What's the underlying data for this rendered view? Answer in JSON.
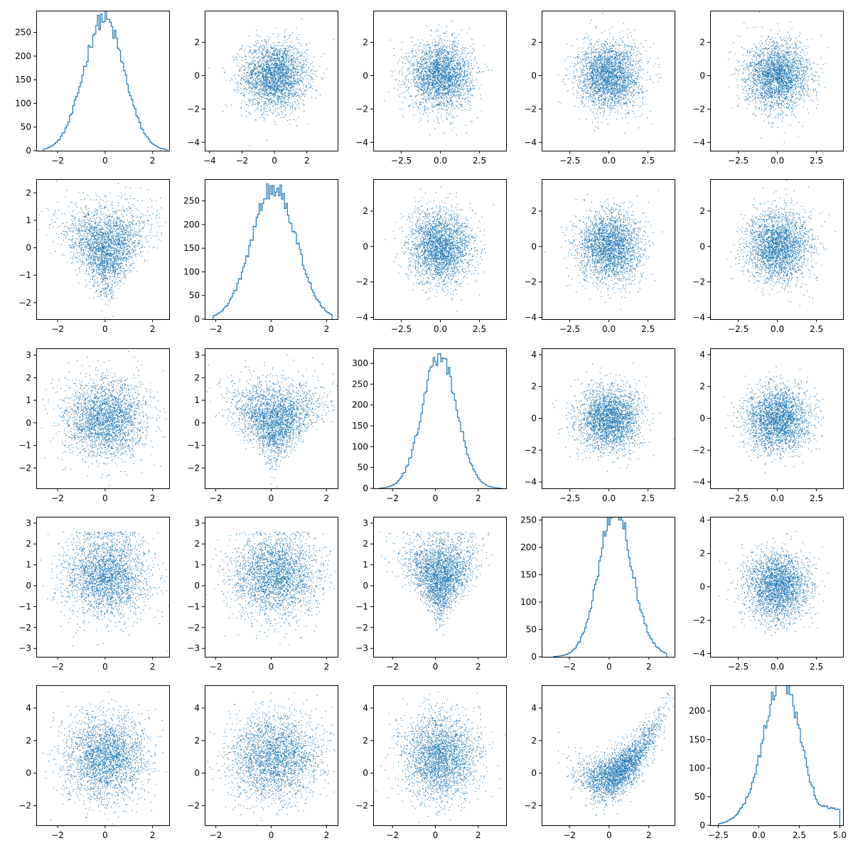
{
  "figure": {
    "type": "pair-plot",
    "rows": 5,
    "cols": 5
  },
  "chart_data": {
    "type": "scatter",
    "layout": "pair-grid",
    "color": "#1f77b4",
    "diagonal": "histogram (step)",
    "off_diagonal": "scatter (dense point cloud)",
    "variables": [
      {
        "index": 0,
        "xlim": [
          -2.9,
          2.7
        ],
        "xticks": [
          -2,
          0,
          2
        ],
        "xtick_labels": [
          "−2",
          "0",
          "2"
        ]
      },
      {
        "index": 1,
        "xlim": [
          -2.4,
          2.4
        ],
        "xticks": [
          -2,
          0,
          2
        ],
        "xtick_labels": [
          "−2",
          "0",
          "2"
        ]
      },
      {
        "index": 2,
        "xlim": [
          -2.9,
          3.3
        ],
        "xticks": [
          -2,
          0,
          2
        ],
        "xtick_labels": [
          "−2",
          "0",
          "2"
        ]
      },
      {
        "index": 3,
        "xlim": [
          -3.4,
          3.3
        ],
        "xticks": [
          -2,
          0,
          2
        ],
        "xtick_labels": [
          "−2",
          "0",
          "2"
        ]
      },
      {
        "index": 4,
        "xlim": [
          -3.0,
          5.2
        ],
        "xticks": [
          -2.5,
          0.0,
          2.5,
          5.0
        ],
        "xtick_labels": [
          "−2.5",
          "0.0",
          "2.5",
          "5.0"
        ]
      }
    ],
    "panels": [
      {
        "row": 0,
        "col": 0,
        "kind": "hist",
        "xlim": [
          -2.9,
          2.7
        ],
        "ylim": [
          0,
          296
        ],
        "xticks": [
          -2,
          0,
          2
        ],
        "xtick_labels": [
          "−2",
          "0",
          "2"
        ],
        "yticks": [
          0,
          50,
          100,
          150,
          200,
          250
        ],
        "ytick_labels": [
          "0",
          "50",
          "100",
          "150",
          "200",
          "250"
        ],
        "hist": {
          "mean": -0.05,
          "sd": 0.85,
          "peak": 280,
          "bins": 80,
          "xmin": -2.6,
          "xmax": 2.6,
          "skew": 0
        }
      },
      {
        "row": 0,
        "col": 1,
        "kind": "scatter",
        "xlim": [
          -4.3,
          3.9
        ],
        "ylim": [
          -4.5,
          3.9
        ],
        "xticks": [
          -4,
          -2,
          0,
          2
        ],
        "xtick_labels": [
          "−4",
          "−2",
          "0",
          "2"
        ],
        "yticks": [
          -4,
          -2,
          0,
          2
        ],
        "ytick_labels": [
          "−4",
          "−2",
          "0",
          "2"
        ],
        "cloud": {
          "n": 2600,
          "mx": 0.0,
          "sx": 1.0,
          "my": 0.0,
          "sy": 1.0
        }
      },
      {
        "row": 0,
        "col": 2,
        "kind": "scatter",
        "xlim": [
          -4.3,
          4.2
        ],
        "ylim": [
          -4.5,
          3.9
        ],
        "xticks": [
          -2.5,
          0.0,
          2.5
        ],
        "xtick_labels": [
          "−2.5",
          "0.0",
          "2.5"
        ],
        "yticks": [
          -4,
          -2,
          0,
          2
        ],
        "ytick_labels": [
          "−4",
          "−2",
          "0",
          "2"
        ],
        "cloud": {
          "n": 2600,
          "mx": 0.0,
          "sx": 1.0,
          "my": 0.0,
          "sy": 1.0
        }
      },
      {
        "row": 0,
        "col": 3,
        "kind": "scatter",
        "xlim": [
          -4.3,
          4.2
        ],
        "ylim": [
          -4.5,
          3.9
        ],
        "xticks": [
          -2.5,
          0.0,
          2.5
        ],
        "xtick_labels": [
          "−2.5",
          "0.0",
          "2.5"
        ],
        "yticks": [
          -4,
          -2,
          0,
          2
        ],
        "ytick_labels": [
          "−4",
          "−2",
          "0",
          "2"
        ],
        "cloud": {
          "n": 2600,
          "mx": 0.0,
          "sx": 1.0,
          "my": 0.0,
          "sy": 1.0
        }
      },
      {
        "row": 0,
        "col": 4,
        "kind": "scatter",
        "xlim": [
          -4.3,
          4.2
        ],
        "ylim": [
          -4.5,
          3.9
        ],
        "xticks": [
          -2.5,
          0.0,
          2.5
        ],
        "xtick_labels": [
          "−2.5",
          "0.0",
          "2.5"
        ],
        "yticks": [
          -4,
          -2,
          0,
          2
        ],
        "ytick_labels": [
          "−4",
          "−2",
          "0",
          "2"
        ],
        "cloud": {
          "n": 2600,
          "mx": 0.0,
          "sx": 1.0,
          "my": 0.0,
          "sy": 1.0
        }
      },
      {
        "row": 1,
        "col": 0,
        "kind": "scatter",
        "xlim": [
          -2.9,
          2.7
        ],
        "ylim": [
          -2.6,
          2.5
        ],
        "xticks": [
          -2,
          0,
          2
        ],
        "xtick_labels": [
          "−2",
          "0",
          "2"
        ],
        "yticks": [
          -2,
          -1,
          0,
          1,
          2
        ],
        "ytick_labels": [
          "−2",
          "−1",
          "0",
          "1",
          "2"
        ],
        "cloud": {
          "n": 2600,
          "mx": 0.0,
          "sx": 0.85,
          "my": 0.1,
          "sy": 0.75,
          "shape": "triangle-down"
        }
      },
      {
        "row": 1,
        "col": 1,
        "kind": "hist",
        "xlim": [
          -2.4,
          2.4
        ],
        "ylim": [
          0,
          296
        ],
        "xticks": [
          -2,
          0,
          2
        ],
        "xtick_labels": [
          "−2",
          "0",
          "2"
        ],
        "yticks": [
          0,
          50,
          100,
          150,
          200,
          250
        ],
        "ytick_labels": [
          "0",
          "50",
          "100",
          "150",
          "200",
          "250"
        ],
        "hist": {
          "mean": 0.1,
          "sd": 0.8,
          "peak": 280,
          "bins": 80,
          "xmin": -2.1,
          "xmax": 2.2,
          "skew": 0
        }
      },
      {
        "row": 1,
        "col": 2,
        "kind": "scatter",
        "xlim": [
          -4.3,
          4.2
        ],
        "ylim": [
          -4.1,
          3.8
        ],
        "xticks": [
          -2.5,
          0.0,
          2.5
        ],
        "xtick_labels": [
          "−2.5",
          "0.0",
          "2.5"
        ],
        "yticks": [
          -4,
          -2,
          0,
          2
        ],
        "ytick_labels": [
          "−4",
          "−2",
          "0",
          "2"
        ],
        "cloud": {
          "n": 2600,
          "mx": 0.0,
          "sx": 1.0,
          "my": 0.0,
          "sy": 1.0
        }
      },
      {
        "row": 1,
        "col": 3,
        "kind": "scatter",
        "xlim": [
          -4.3,
          4.2
        ],
        "ylim": [
          -4.1,
          3.8
        ],
        "xticks": [
          -2.5,
          0.0,
          2.5
        ],
        "xtick_labels": [
          "−2.5",
          "0.0",
          "2.5"
        ],
        "yticks": [
          -4,
          -2,
          0,
          2
        ],
        "ytick_labels": [
          "−4",
          "−2",
          "0",
          "2"
        ],
        "cloud": {
          "n": 2600,
          "mx": 0.0,
          "sx": 1.0,
          "my": 0.0,
          "sy": 1.0
        }
      },
      {
        "row": 1,
        "col": 4,
        "kind": "scatter",
        "xlim": [
          -4.3,
          4.2
        ],
        "ylim": [
          -4.1,
          3.8
        ],
        "xticks": [
          -2.5,
          0.0,
          2.5
        ],
        "xtick_labels": [
          "−2.5",
          "0.0",
          "2.5"
        ],
        "yticks": [
          -4,
          -2,
          0,
          2
        ],
        "ytick_labels": [
          "−4",
          "−2",
          "0",
          "2"
        ],
        "cloud": {
          "n": 2600,
          "mx": 0.0,
          "sx": 1.0,
          "my": 0.0,
          "sy": 1.0
        }
      },
      {
        "row": 2,
        "col": 0,
        "kind": "scatter",
        "xlim": [
          -2.9,
          2.7
        ],
        "ylim": [
          -2.9,
          3.3
        ],
        "xticks": [
          -2,
          0,
          2
        ],
        "xtick_labels": [
          "−2",
          "0",
          "2"
        ],
        "yticks": [
          -2,
          -1,
          0,
          1,
          2,
          3
        ],
        "ytick_labels": [
          "−2",
          "−1",
          "0",
          "1",
          "2",
          "3"
        ],
        "cloud": {
          "n": 2600,
          "mx": 0.0,
          "sx": 0.85,
          "my": 0.2,
          "sy": 0.85
        }
      },
      {
        "row": 2,
        "col": 1,
        "kind": "scatter",
        "xlim": [
          -2.4,
          2.4
        ],
        "ylim": [
          -2.9,
          3.3
        ],
        "xticks": [
          -2,
          0,
          2
        ],
        "xtick_labels": [
          "−2",
          "0",
          "2"
        ],
        "yticks": [
          -2,
          -1,
          0,
          1,
          2,
          3
        ],
        "ytick_labels": [
          "−2",
          "−1",
          "0",
          "1",
          "2",
          "3"
        ],
        "cloud": {
          "n": 2600,
          "mx": 0.1,
          "sx": 0.8,
          "my": 0.3,
          "sy": 0.8,
          "shape": "triangle-down"
        }
      },
      {
        "row": 2,
        "col": 2,
        "kind": "hist",
        "xlim": [
          -2.9,
          3.3
        ],
        "ylim": [
          0,
          336
        ],
        "xticks": [
          -2,
          0,
          2
        ],
        "xtick_labels": [
          "−2",
          "0",
          "2"
        ],
        "yticks": [
          0,
          50,
          100,
          150,
          200,
          250,
          300
        ],
        "ytick_labels": [
          "0",
          "50",
          "100",
          "150",
          "200",
          "250",
          "300"
        ],
        "hist": {
          "mean": 0.2,
          "sd": 0.8,
          "peak": 320,
          "bins": 80,
          "xmin": -2.6,
          "xmax": 3.1,
          "skew": 0
        }
      },
      {
        "row": 2,
        "col": 3,
        "kind": "scatter",
        "xlim": [
          -4.3,
          4.2
        ],
        "ylim": [
          -4.4,
          4.4
        ],
        "xticks": [
          -2.5,
          0.0,
          2.5
        ],
        "xtick_labels": [
          "−2.5",
          "0.0",
          "2.5"
        ],
        "yticks": [
          -4,
          -2,
          0,
          2,
          4
        ],
        "ytick_labels": [
          "−4",
          "−2",
          "0",
          "2",
          "4"
        ],
        "cloud": {
          "n": 2600,
          "mx": 0.0,
          "sx": 1.0,
          "my": 0.0,
          "sy": 1.0
        }
      },
      {
        "row": 2,
        "col": 4,
        "kind": "scatter",
        "xlim": [
          -4.3,
          4.2
        ],
        "ylim": [
          -4.4,
          4.4
        ],
        "xticks": [
          -2.5,
          0.0,
          2.5
        ],
        "xtick_labels": [
          "−2.5",
          "0.0",
          "2.5"
        ],
        "yticks": [
          -4,
          -2,
          0,
          2,
          4
        ],
        "ytick_labels": [
          "−4",
          "−2",
          "0",
          "2",
          "4"
        ],
        "cloud": {
          "n": 2600,
          "mx": 0.0,
          "sx": 1.0,
          "my": 0.0,
          "sy": 1.0
        }
      },
      {
        "row": 3,
        "col": 0,
        "kind": "scatter",
        "xlim": [
          -2.9,
          2.7
        ],
        "ylim": [
          -3.4,
          3.3
        ],
        "xticks": [
          -2,
          0,
          2
        ],
        "xtick_labels": [
          "−2",
          "0",
          "2"
        ],
        "yticks": [
          -3,
          -2,
          -1,
          0,
          1,
          2,
          3
        ],
        "ytick_labels": [
          "−3",
          "−2",
          "−1",
          "0",
          "1",
          "2",
          "3"
        ],
        "cloud": {
          "n": 2600,
          "mx": 0.0,
          "sx": 0.85,
          "my": 0.5,
          "sy": 1.0,
          "ymax": 2.6
        }
      },
      {
        "row": 3,
        "col": 1,
        "kind": "scatter",
        "xlim": [
          -2.4,
          2.4
        ],
        "ylim": [
          -3.4,
          3.3
        ],
        "xticks": [
          -2,
          0,
          2
        ],
        "xtick_labels": [
          "−2",
          "0",
          "2"
        ],
        "yticks": [
          -3,
          -2,
          -1,
          0,
          1,
          2,
          3
        ],
        "ytick_labels": [
          "−3",
          "−2",
          "−1",
          "0",
          "1",
          "2",
          "3"
        ],
        "cloud": {
          "n": 2600,
          "mx": 0.1,
          "sx": 0.8,
          "my": 0.5,
          "sy": 1.0,
          "ymax": 2.6
        }
      },
      {
        "row": 3,
        "col": 2,
        "kind": "scatter",
        "xlim": [
          -2.9,
          3.3
        ],
        "ylim": [
          -3.4,
          3.3
        ],
        "xticks": [
          -2,
          0,
          2
        ],
        "xtick_labels": [
          "−2",
          "0",
          "2"
        ],
        "yticks": [
          -3,
          -2,
          -1,
          0,
          1,
          2,
          3
        ],
        "ytick_labels": [
          "−3",
          "−2",
          "−1",
          "0",
          "1",
          "2",
          "3"
        ],
        "cloud": {
          "n": 2600,
          "mx": 0.2,
          "sx": 0.8,
          "my": 0.6,
          "sy": 0.9,
          "shape": "triangle-down",
          "ymax": 2.6
        }
      },
      {
        "row": 3,
        "col": 3,
        "kind": "hist",
        "xlim": [
          -3.4,
          3.3
        ],
        "ylim": [
          0,
          256
        ],
        "xticks": [
          -2,
          0,
          2
        ],
        "xtick_labels": [
          "−2",
          "0",
          "2"
        ],
        "yticks": [
          0,
          50,
          100,
          150,
          200,
          250
        ],
        "ytick_labels": [
          "0",
          "50",
          "100",
          "150",
          "200",
          "250"
        ],
        "hist": {
          "mean": 0.7,
          "sd": 0.95,
          "peak": 245,
          "bins": 80,
          "xmin": -2.8,
          "xmax": 2.9,
          "skew": -1
        }
      },
      {
        "row": 3,
        "col": 4,
        "kind": "scatter",
        "xlim": [
          -4.3,
          4.2
        ],
        "ylim": [
          -4.2,
          4.2
        ],
        "xticks": [
          -2.5,
          0.0,
          2.5
        ],
        "xtick_labels": [
          "−2.5",
          "0.0",
          "2.5"
        ],
        "yticks": [
          -4,
          -2,
          0,
          2,
          4
        ],
        "ytick_labels": [
          "−4",
          "−2",
          "0",
          "2",
          "4"
        ],
        "cloud": {
          "n": 2600,
          "mx": 0.0,
          "sx": 1.0,
          "my": 0.0,
          "sy": 1.0
        }
      },
      {
        "row": 4,
        "col": 0,
        "kind": "scatter",
        "xlim": [
          -2.9,
          2.7
        ],
        "ylim": [
          -3.2,
          5.4
        ],
        "xticks": [
          -2,
          0,
          2
        ],
        "xtick_labels": [
          "−2",
          "0",
          "2"
        ],
        "yticks": [
          -2,
          0,
          2,
          4
        ],
        "ytick_labels": [
          "−2",
          "0",
          "2",
          "4"
        ],
        "cloud": {
          "n": 2600,
          "mx": 0.0,
          "sx": 0.85,
          "my": 1.0,
          "sy": 1.3,
          "ymax": 5.0
        }
      },
      {
        "row": 4,
        "col": 1,
        "kind": "scatter",
        "xlim": [
          -2.4,
          2.4
        ],
        "ylim": [
          -3.2,
          5.4
        ],
        "xticks": [
          -2,
          0,
          2
        ],
        "xtick_labels": [
          "−2",
          "0",
          "2"
        ],
        "yticks": [
          -2,
          0,
          2,
          4
        ],
        "ytick_labels": [
          "−2",
          "0",
          "2",
          "4"
        ],
        "cloud": {
          "n": 2600,
          "mx": 0.1,
          "sx": 0.8,
          "my": 1.0,
          "sy": 1.3,
          "ymax": 5.0
        }
      },
      {
        "row": 4,
        "col": 2,
        "kind": "scatter",
        "xlim": [
          -2.9,
          3.3
        ],
        "ylim": [
          -3.2,
          5.4
        ],
        "xticks": [
          -2,
          0,
          2
        ],
        "xtick_labels": [
          "−2",
          "0",
          "2"
        ],
        "yticks": [
          -2,
          0,
          2,
          4
        ],
        "ytick_labels": [
          "−2",
          "0",
          "2",
          "4"
        ],
        "cloud": {
          "n": 2600,
          "mx": 0.2,
          "sx": 0.85,
          "my": 1.0,
          "sy": 1.3,
          "ymax": 5.0
        }
      },
      {
        "row": 4,
        "col": 3,
        "kind": "scatter",
        "xlim": [
          -3.4,
          3.3
        ],
        "ylim": [
          -3.2,
          5.4
        ],
        "xticks": [
          -2,
          0,
          2
        ],
        "xtick_labels": [
          "−2",
          "0",
          "2"
        ],
        "yticks": [
          -2,
          0,
          2,
          4
        ],
        "ytick_labels": [
          "−2",
          "0",
          "2",
          "4"
        ],
        "cloud": {
          "n": 2600,
          "mx": 0.5,
          "sx": 1.0,
          "my": 0.5,
          "sy": 1.0,
          "shape": "curve",
          "ymax": 5.0
        }
      },
      {
        "row": 4,
        "col": 4,
        "kind": "hist",
        "xlim": [
          -3.0,
          5.2
        ],
        "ylim": [
          0,
          245
        ],
        "xticks": [
          -2.5,
          0.0,
          2.5,
          5.0
        ],
        "xtick_labels": [
          "−2.5",
          "0.0",
          "2.5",
          "5.0"
        ],
        "yticks": [
          0,
          50,
          100,
          150,
          200
        ],
        "ytick_labels": [
          "0",
          "50",
          "100",
          "150",
          "200"
        ],
        "hist": {
          "mean": 0.9,
          "sd": 1.3,
          "peak": 230,
          "bins": 80,
          "xmin": -2.5,
          "xmax": 5.0,
          "skew": 1
        }
      }
    ]
  }
}
